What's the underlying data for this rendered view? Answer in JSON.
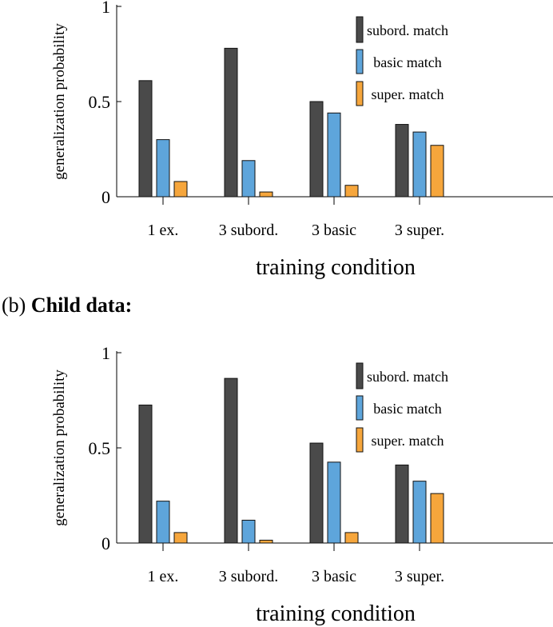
{
  "panel_b_label": {
    "prefix": "(b) ",
    "bold": "Child data:"
  },
  "colors": {
    "subord": "#4a4a4a",
    "basic": "#5ea5db",
    "super": "#f6a63c"
  },
  "chart_data": [
    {
      "type": "bar",
      "categories": [
        "1 ex.",
        "3 subord.",
        "3 basic",
        "3 super."
      ],
      "series": [
        {
          "name": "subord. match",
          "values": [
            0.61,
            0.78,
            0.5,
            0.38
          ]
        },
        {
          "name": "basic match",
          "values": [
            0.3,
            0.19,
            0.44,
            0.34
          ]
        },
        {
          "name": "super. match",
          "values": [
            0.08,
            0.025,
            0.06,
            0.27
          ]
        }
      ],
      "xlabel": "training condition",
      "ylabel": "generalization probability",
      "ylim": [
        0,
        1
      ],
      "yticks": [
        "0",
        "0.5",
        "1"
      ],
      "grid": false,
      "legend": "top-right"
    },
    {
      "type": "bar",
      "categories": [
        "1 ex.",
        "3 subord.",
        "3 basic",
        "3 super."
      ],
      "series": [
        {
          "name": "subord. match",
          "values": [
            0.725,
            0.865,
            0.525,
            0.41
          ]
        },
        {
          "name": "basic match",
          "values": [
            0.22,
            0.12,
            0.425,
            0.325
          ]
        },
        {
          "name": "super. match",
          "values": [
            0.055,
            0.015,
            0.055,
            0.26
          ]
        }
      ],
      "xlabel": "training condition",
      "ylabel": "generalization probability",
      "ylim": [
        0,
        1
      ],
      "yticks": [
        "0",
        "0.5",
        "1"
      ],
      "grid": false,
      "legend": "top-right"
    }
  ]
}
